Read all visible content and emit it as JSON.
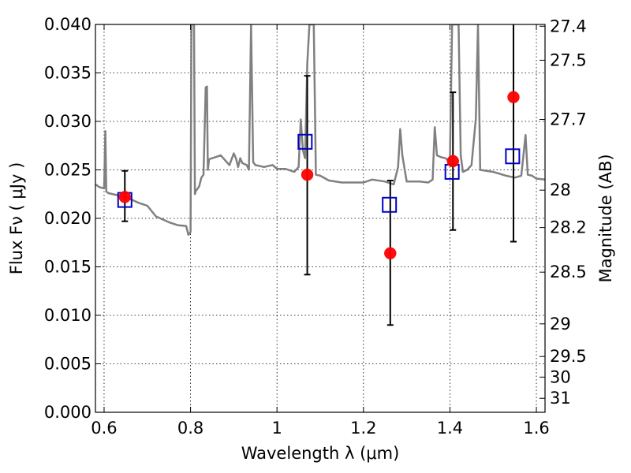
{
  "chart_data": {
    "type": "scatter",
    "xlabel": "Wavelength  λ (μm)",
    "ylabel": "Flux  Fν ( μJy )",
    "y2label": "Magnitude (AB)",
    "xlim": [
      0.58,
      1.62
    ],
    "ylim": [
      0.0,
      0.04
    ],
    "grid": true,
    "x_ticks": [
      0.6,
      0.8,
      1.0,
      1.2,
      1.4,
      1.6
    ],
    "x_tick_labels": [
      "0.6",
      "0.8",
      "1",
      "1.2",
      "1.4",
      "1.6"
    ],
    "y_ticks": [
      0.0,
      0.005,
      0.01,
      0.015,
      0.02,
      0.025,
      0.03,
      0.035,
      0.04
    ],
    "y_tick_labels": [
      "0.000",
      "0.005",
      "0.010",
      "0.015",
      "0.020",
      "0.025",
      "0.030",
      "0.035",
      "0.040"
    ],
    "y2_ticks": [
      27.4,
      27.5,
      27.7,
      28,
      28.2,
      28.5,
      29,
      29.5,
      30,
      31
    ],
    "y2_tick_labels": [
      "27.4",
      "27.5",
      "27.7",
      "28",
      "28.2",
      "28.5",
      "29",
      "29.5",
      "30",
      "31"
    ],
    "series": [
      {
        "kind": "line",
        "color": "#808080",
        "x": [
          0.58,
          0.59,
          0.6,
          0.603,
          0.605,
          0.607,
          0.61,
          0.63,
          0.65,
          0.68,
          0.7,
          0.72,
          0.75,
          0.77,
          0.79,
          0.795,
          0.8,
          0.802,
          0.805,
          0.808,
          0.81,
          0.812,
          0.82,
          0.825,
          0.83,
          0.835,
          0.838,
          0.84,
          0.843,
          0.85,
          0.87,
          0.89,
          0.9,
          0.905,
          0.91,
          0.915,
          0.92,
          0.93,
          0.935,
          0.94,
          0.945,
          0.95,
          0.97,
          0.99,
          1.0,
          1.02,
          1.04,
          1.05,
          1.055,
          1.06,
          1.065,
          1.07,
          1.075,
          1.08,
          1.085,
          1.09,
          1.1,
          1.12,
          1.15,
          1.18,
          1.2,
          1.22,
          1.25,
          1.27,
          1.28,
          1.285,
          1.29,
          1.3,
          1.33,
          1.35,
          1.36,
          1.365,
          1.37,
          1.38,
          1.39,
          1.4,
          1.405,
          1.41,
          1.42,
          1.425,
          1.43,
          1.44,
          1.45,
          1.46,
          1.465,
          1.47,
          1.5,
          1.53,
          1.55,
          1.565,
          1.575,
          1.58,
          1.59,
          1.6,
          1.62
        ],
        "y": [
          0.0235,
          0.0232,
          0.0231,
          0.029,
          0.0228,
          0.0227,
          0.0226,
          0.0224,
          0.0222,
          0.0216,
          0.0213,
          0.0202,
          0.0196,
          0.0193,
          0.0192,
          0.0183,
          0.0186,
          0.04,
          0.04,
          0.04,
          0.0225,
          0.0228,
          0.0233,
          0.0242,
          0.0245,
          0.0335,
          0.0336,
          0.025,
          0.0261,
          0.0262,
          0.0265,
          0.0255,
          0.0267,
          0.0262,
          0.0253,
          0.0262,
          0.0257,
          0.0255,
          0.025,
          0.04,
          0.0258,
          0.0255,
          0.0253,
          0.0255,
          0.0251,
          0.0251,
          0.0248,
          0.0253,
          0.0302,
          0.027,
          0.0262,
          0.036,
          0.04,
          0.04,
          0.04,
          0.0245,
          0.0244,
          0.0239,
          0.0237,
          0.0237,
          0.0237,
          0.024,
          0.0238,
          0.0235,
          0.0253,
          0.0292,
          0.0265,
          0.0238,
          0.0238,
          0.0237,
          0.024,
          0.0294,
          0.0265,
          0.0263,
          0.0262,
          0.0258,
          0.04,
          0.04,
          0.04,
          0.0265,
          0.0248,
          0.025,
          0.0255,
          0.0303,
          0.04,
          0.025,
          0.0248,
          0.0244,
          0.0242,
          0.0244,
          0.0286,
          0.0245,
          0.0244,
          0.0241,
          0.024
        ]
      },
      {
        "kind": "markers",
        "marker": "square",
        "color": "#0000c8",
        "x": [
          0.648,
          1.065,
          1.26,
          1.405,
          1.545
        ],
        "y": [
          0.0219,
          0.0279,
          0.0214,
          0.0248,
          0.0264
        ]
      },
      {
        "kind": "markers",
        "marker": "circle",
        "color": "#ff0000",
        "x": [
          0.648,
          1.07,
          1.262,
          1.407,
          1.547
        ],
        "y": [
          0.0222,
          0.0245,
          0.0164,
          0.0259,
          0.0325
        ],
        "yerr_low": [
          0.0197,
          0.0142,
          0.009,
          0.0188,
          0.0176
        ],
        "yerr_high": [
          0.0249,
          0.0347,
          0.0239,
          0.033,
          0.042
        ]
      }
    ]
  }
}
